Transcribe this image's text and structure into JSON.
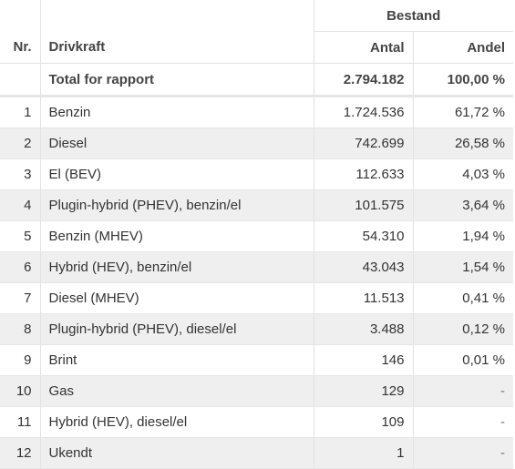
{
  "header": {
    "group_label": "Bestand",
    "col_nr": "Nr.",
    "col_drivkraft": "Drivkraft",
    "col_antal": "Antal",
    "col_andel": "Andel"
  },
  "total": {
    "label": "Total for rapport",
    "antal": "2.794.182",
    "andel": "100,00 %"
  },
  "rows": [
    {
      "nr": "1",
      "drivkraft": "Benzin",
      "antal": "1.724.536",
      "andel": "61,72 %"
    },
    {
      "nr": "2",
      "drivkraft": "Diesel",
      "antal": "742.699",
      "andel": "26,58 %"
    },
    {
      "nr": "3",
      "drivkraft": "El (BEV)",
      "antal": "112.633",
      "andel": "4,03 %"
    },
    {
      "nr": "4",
      "drivkraft": "Plugin-hybrid (PHEV), benzin/el",
      "antal": "101.575",
      "andel": "3,64 %"
    },
    {
      "nr": "5",
      "drivkraft": "Benzin (MHEV)",
      "antal": "54.310",
      "andel": "1,94 %"
    },
    {
      "nr": "6",
      "drivkraft": "Hybrid (HEV), benzin/el",
      "antal": "43.043",
      "andel": "1,54 %"
    },
    {
      "nr": "7",
      "drivkraft": "Diesel (MHEV)",
      "antal": "11.513",
      "andel": "0,41 %"
    },
    {
      "nr": "8",
      "drivkraft": "Plugin-hybrid (PHEV), diesel/el",
      "antal": "3.488",
      "andel": "0,12 %"
    },
    {
      "nr": "9",
      "drivkraft": "Brint",
      "antal": "146",
      "andel": "0,01 %"
    },
    {
      "nr": "10",
      "drivkraft": "Gas",
      "antal": "129",
      "andel": "-"
    },
    {
      "nr": "11",
      "drivkraft": "Hybrid (HEV), diesel/el",
      "antal": "109",
      "andel": "-"
    },
    {
      "nr": "12",
      "drivkraft": "Ukendt",
      "antal": "1",
      "andel": "-"
    }
  ]
}
